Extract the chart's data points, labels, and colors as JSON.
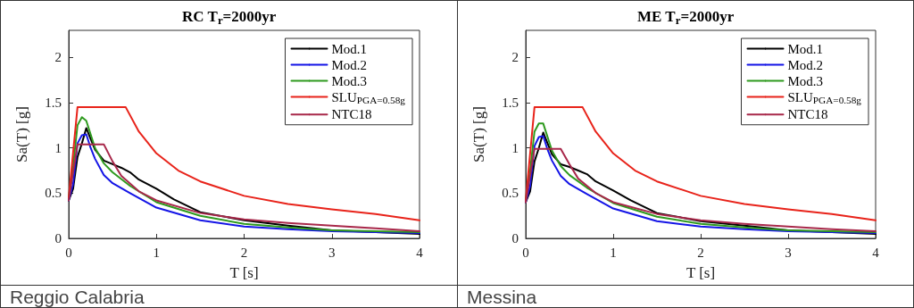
{
  "chart_data": [
    {
      "type": "line",
      "title": "RC T$_{r}$=2000yr",
      "xlabel": "T [s]",
      "ylabel": "Sa(T) [g]",
      "annotations": [
        "Reggio Calabria"
      ],
      "xlim": [
        0,
        4
      ],
      "ylim": [
        0,
        2.3
      ],
      "xticks": [
        0,
        1,
        2,
        3,
        4
      ],
      "yticks": [
        0,
        0.5,
        1,
        1.5,
        2
      ],
      "legend": "top right",
      "grid": false,
      "series": [
        {
          "name": "Mod.1",
          "color": "#000000",
          "x": [
            0,
            0.05,
            0.1,
            0.15,
            0.2,
            0.25,
            0.3,
            0.4,
            0.5,
            0.6,
            0.7,
            0.8,
            1.0,
            1.2,
            1.5,
            2.0,
            2.5,
            3.0,
            4.0
          ],
          "values": [
            0.42,
            0.55,
            0.9,
            1.05,
            1.22,
            1.1,
            0.98,
            0.86,
            0.82,
            0.78,
            0.73,
            0.65,
            0.55,
            0.43,
            0.29,
            0.2,
            0.14,
            0.09,
            0.05
          ]
        },
        {
          "name": "Mod.2",
          "color": "#1414e6",
          "x": [
            0,
            0.05,
            0.1,
            0.15,
            0.2,
            0.25,
            0.3,
            0.4,
            0.5,
            0.7,
            1.0,
            1.5,
            2.0,
            2.5,
            3.0,
            4.0
          ],
          "values": [
            0.42,
            0.6,
            1.05,
            1.14,
            1.15,
            1.0,
            0.88,
            0.7,
            0.61,
            0.5,
            0.34,
            0.2,
            0.13,
            0.1,
            0.08,
            0.06
          ]
        },
        {
          "name": "Mod.3",
          "color": "#2e9a1e",
          "x": [
            0,
            0.05,
            0.1,
            0.15,
            0.2,
            0.25,
            0.3,
            0.4,
            0.5,
            0.7,
            1.0,
            1.5,
            2.0,
            2.5,
            3.0,
            4.0
          ],
          "values": [
            0.45,
            0.8,
            1.25,
            1.34,
            1.3,
            1.15,
            1.0,
            0.83,
            0.73,
            0.58,
            0.4,
            0.25,
            0.16,
            0.12,
            0.09,
            0.07
          ]
        },
        {
          "name": "SLU$_{PGA=0.58g}$",
          "color": "#e8231a",
          "x": [
            0,
            0.1,
            0.65,
            0.8,
            1.0,
            1.25,
            1.5,
            2.0,
            2.5,
            3.0,
            3.5,
            4.0
          ],
          "values": [
            0.45,
            1.45,
            1.45,
            1.18,
            0.94,
            0.75,
            0.63,
            0.47,
            0.38,
            0.32,
            0.27,
            0.2
          ]
        },
        {
          "name": "NTC18",
          "color": "#a8284a",
          "x": [
            0,
            0.1,
            0.4,
            0.5,
            0.6,
            0.8,
            1.0,
            1.5,
            2.0,
            2.5,
            3.0,
            3.5,
            4.0
          ],
          "values": [
            0.42,
            1.04,
            1.04,
            0.85,
            0.69,
            0.52,
            0.42,
            0.28,
            0.21,
            0.17,
            0.14,
            0.11,
            0.08
          ]
        }
      ]
    },
    {
      "type": "line",
      "title": "ME T$_{r}$=2000yr",
      "xlabel": "T [s]",
      "ylabel": "Sa(T) [g]",
      "annotations": [
        "Messina"
      ],
      "xlim": [
        0,
        4
      ],
      "ylim": [
        0,
        2.3
      ],
      "xticks": [
        0,
        1,
        2,
        3,
        4
      ],
      "yticks": [
        0,
        0.5,
        1,
        1.5,
        2
      ],
      "legend": "top right",
      "grid": false,
      "series": [
        {
          "name": "Mod.1",
          "color": "#000000",
          "x": [
            0,
            0.05,
            0.1,
            0.15,
            0.2,
            0.25,
            0.3,
            0.4,
            0.5,
            0.6,
            0.7,
            0.8,
            1.0,
            1.2,
            1.5,
            2.0,
            2.5,
            3.0,
            4.0
          ],
          "values": [
            0.4,
            0.52,
            0.85,
            1.0,
            1.17,
            1.05,
            0.93,
            0.82,
            0.79,
            0.75,
            0.71,
            0.63,
            0.53,
            0.42,
            0.28,
            0.19,
            0.14,
            0.09,
            0.05
          ]
        },
        {
          "name": "Mod.2",
          "color": "#1414e6",
          "x": [
            0,
            0.05,
            0.1,
            0.15,
            0.2,
            0.25,
            0.3,
            0.4,
            0.5,
            0.7,
            1.0,
            1.5,
            2.0,
            2.5,
            3.0,
            4.0
          ],
          "values": [
            0.4,
            0.58,
            1.02,
            1.12,
            1.13,
            0.98,
            0.86,
            0.69,
            0.6,
            0.49,
            0.33,
            0.19,
            0.13,
            0.1,
            0.08,
            0.06
          ]
        },
        {
          "name": "Mod.3",
          "color": "#2e9a1e",
          "x": [
            0,
            0.05,
            0.1,
            0.15,
            0.2,
            0.25,
            0.3,
            0.4,
            0.5,
            0.7,
            1.0,
            1.5,
            2.0,
            2.5,
            3.0,
            4.0
          ],
          "values": [
            0.43,
            0.75,
            1.18,
            1.27,
            1.27,
            1.12,
            0.97,
            0.8,
            0.7,
            0.56,
            0.39,
            0.24,
            0.16,
            0.12,
            0.09,
            0.07
          ]
        },
        {
          "name": "SLU$_{PGA=0.58g}$",
          "color": "#e8231a",
          "x": [
            0,
            0.1,
            0.65,
            0.8,
            1.0,
            1.25,
            1.5,
            2.0,
            2.5,
            3.0,
            3.5,
            4.0
          ],
          "values": [
            0.42,
            1.45,
            1.45,
            1.18,
            0.94,
            0.75,
            0.63,
            0.47,
            0.38,
            0.32,
            0.27,
            0.2
          ]
        },
        {
          "name": "NTC18",
          "color": "#a8284a",
          "x": [
            0,
            0.1,
            0.4,
            0.5,
            0.6,
            0.8,
            1.0,
            1.5,
            2.0,
            2.5,
            3.0,
            3.5,
            4.0
          ],
          "values": [
            0.4,
            0.99,
            0.99,
            0.82,
            0.66,
            0.5,
            0.4,
            0.27,
            0.2,
            0.16,
            0.13,
            0.1,
            0.08
          ]
        }
      ]
    }
  ]
}
